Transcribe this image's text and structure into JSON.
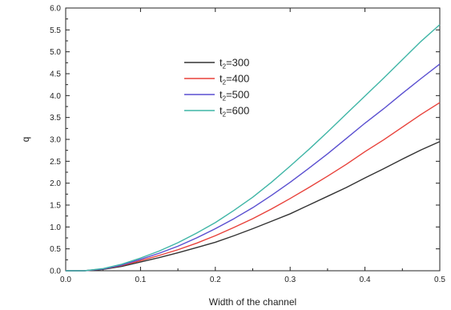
{
  "chart_data": {
    "type": "line",
    "title": "",
    "xlabel": "Width of the channel",
    "ylabel": "q",
    "xlim": [
      0.0,
      0.5
    ],
    "ylim": [
      0.0,
      6.0
    ],
    "x_ticks": [
      "0.0",
      "0.1",
      "0.2",
      "0.3",
      "0.4",
      "0.5"
    ],
    "y_ticks": [
      "0.0",
      "0.5",
      "1.0",
      "1.5",
      "2.0",
      "2.5",
      "3.0",
      "3.5",
      "4.0",
      "4.5",
      "5.0",
      "5.5",
      "6.0"
    ],
    "grid": false,
    "legend_position": "top-center",
    "x": [
      0.0,
      0.025,
      0.05,
      0.075,
      0.1,
      0.125,
      0.15,
      0.175,
      0.2,
      0.225,
      0.25,
      0.275,
      0.3,
      0.325,
      0.35,
      0.375,
      0.4,
      0.425,
      0.45,
      0.475,
      0.5
    ],
    "series": [
      {
        "name_prefix": "t",
        "name_sub": "2",
        "name_suffix": "=300",
        "color": "#333333",
        "values": [
          0.0,
          0.0,
          0.03,
          0.1,
          0.2,
          0.3,
          0.41,
          0.53,
          0.65,
          0.8,
          0.96,
          1.13,
          1.3,
          1.5,
          1.7,
          1.9,
          2.12,
          2.33,
          2.55,
          2.76,
          2.95
        ]
      },
      {
        "name_prefix": "t",
        "name_sub": "2",
        "name_suffix": "=400",
        "color": "#e8413a",
        "values": [
          0.0,
          0.0,
          0.04,
          0.12,
          0.23,
          0.35,
          0.48,
          0.63,
          0.8,
          0.99,
          1.19,
          1.41,
          1.65,
          1.9,
          2.16,
          2.43,
          2.72,
          2.99,
          3.28,
          3.57,
          3.84
        ]
      },
      {
        "name_prefix": "t",
        "name_sub": "2",
        "name_suffix": "=500",
        "color": "#5a4fd0",
        "values": [
          0.0,
          0.0,
          0.04,
          0.13,
          0.26,
          0.4,
          0.56,
          0.75,
          0.96,
          1.19,
          1.44,
          1.72,
          2.02,
          2.34,
          2.67,
          3.02,
          3.37,
          3.7,
          4.05,
          4.39,
          4.72
        ]
      },
      {
        "name_prefix": "t",
        "name_sub": "2",
        "name_suffix": "=600",
        "color": "#3fb5a6",
        "values": [
          0.0,
          0.0,
          0.05,
          0.15,
          0.29,
          0.45,
          0.64,
          0.86,
          1.1,
          1.38,
          1.68,
          2.02,
          2.39,
          2.77,
          3.17,
          3.58,
          3.99,
          4.4,
          4.82,
          5.24,
          5.62
        ]
      }
    ]
  }
}
